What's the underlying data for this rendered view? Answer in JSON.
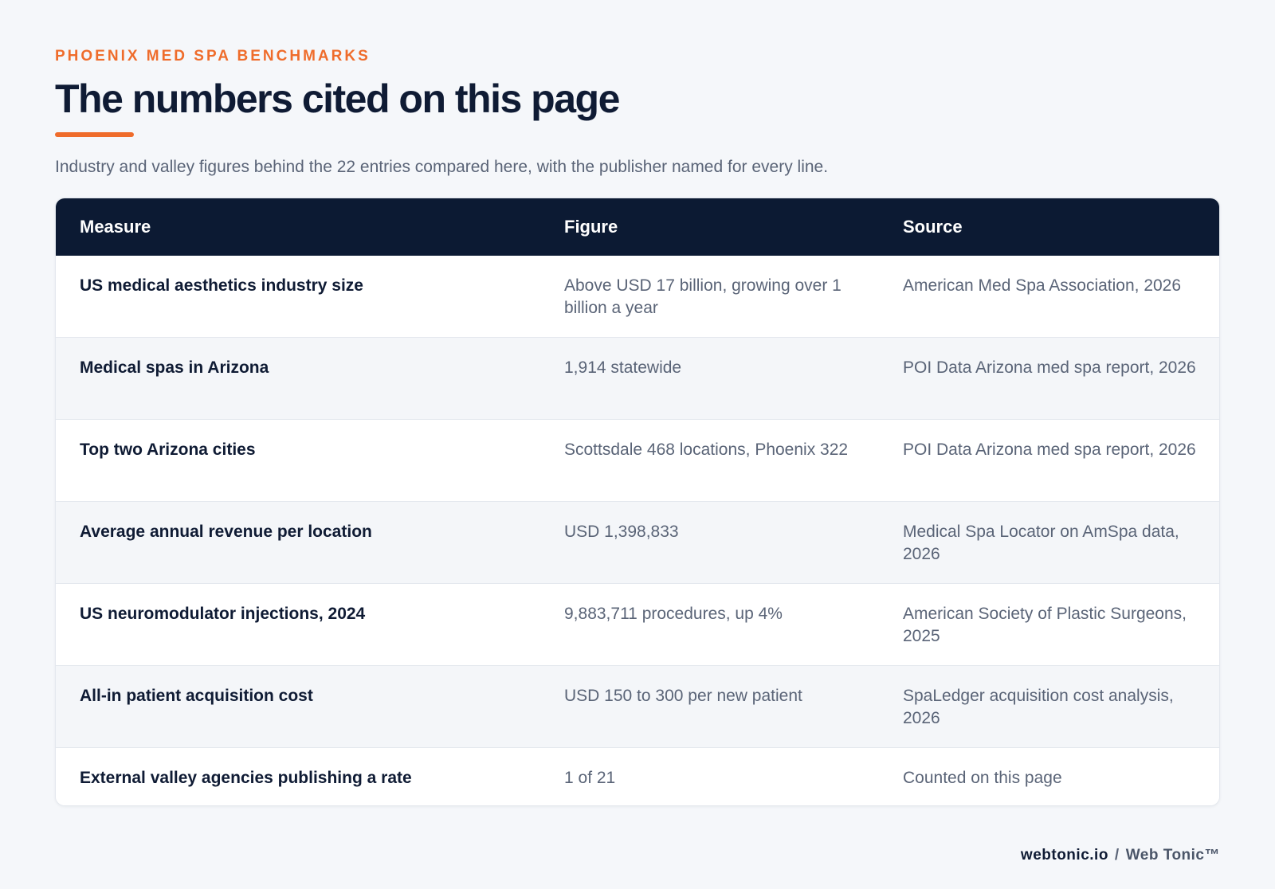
{
  "header": {
    "eyebrow": "PHOENIX MED SPA BENCHMARKS",
    "title": "The numbers cited on this page",
    "subtitle": "Industry and valley figures behind the 22 entries compared here, with the publisher named for every line."
  },
  "table": {
    "columns": [
      "Measure",
      "Figure",
      "Source"
    ],
    "rows": [
      {
        "measure": "US medical aesthetics industry size",
        "figure": "Above USD 17 billion, growing over 1 billion a year",
        "source": "American Med Spa Association, 2026"
      },
      {
        "measure": "Medical spas in Arizona",
        "figure": "1,914 statewide",
        "source": "POI Data Arizona med spa report, 2026"
      },
      {
        "measure": "Top two Arizona cities",
        "figure": "Scottsdale 468 locations, Phoenix 322",
        "source": "POI Data Arizona med spa report, 2026"
      },
      {
        "measure": "Average annual revenue per location",
        "figure": "USD 1,398,833",
        "source": "Medical Spa Locator on AmSpa data, 2026"
      },
      {
        "measure": "US neuromodulator injections, 2024",
        "figure": "9,883,711 procedures, up 4%",
        "source": "American Society of Plastic Surgeons, 2025"
      },
      {
        "measure": "All-in patient acquisition cost",
        "figure": "USD 150 to 300 per new patient",
        "source": "SpaLedger acquisition cost analysis, 2026"
      },
      {
        "measure": "External valley agencies publishing a rate",
        "figure": "1 of 21",
        "source": "Counted on this page"
      }
    ]
  },
  "footer": {
    "domain": "webtonic.io",
    "separator": "/",
    "brand": "Web Tonic™"
  },
  "colors": {
    "accent": "#ef6c2b",
    "header_bg": "#0c1a33",
    "text_dark": "#0f1b34",
    "text_muted": "#5a6477"
  }
}
